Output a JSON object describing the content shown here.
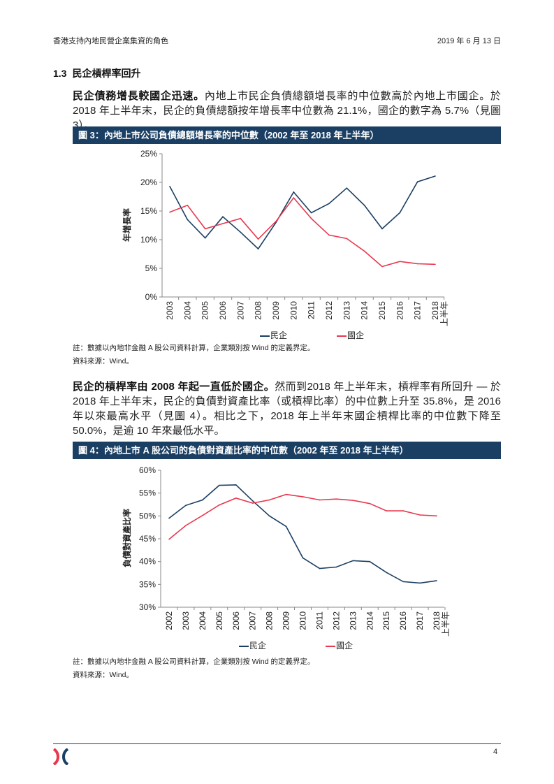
{
  "header": {
    "title": "香港支持內地民營企業集資的角色",
    "date": "2019 年 6 月 13 日"
  },
  "section": {
    "number": "1.3",
    "title": "民企槓桿率回升"
  },
  "paragraph1": {
    "lead": "民企債務增長較國企迅速。",
    "body": "內地上市民企負債總額增長率的中位數高於內地上市國企。於 2018 年上半年末，民企的負債總額按年增長率中位數為 21.1%，國企的數字為 5.7%（見圖 3）。"
  },
  "figure3": {
    "title": "圖 3：內地上市公司負債總額增長率的中位數（2002 年至 2018 年上半年）"
  },
  "figure3_notes": {
    "note": "註：數據以內地非金融 A 股公司資料計算，企業類別按 Wind 的定義界定。",
    "source": "資料來源：Wind。"
  },
  "paragraph2": {
    "lead": "民企的槓桿率由 2008 年起一直低於國企。",
    "body": "然而到2018 年上半年末，槓桿率有所回升 — 於 2018 年上半年末，民企的負債對資產比率（或槓桿比率）的中位數上升至 35.8%，是 2016 年以來最高水平（見圖 4）。相比之下，2018 年上半年末國企槓桿比率的中位數下降至 50.0%，是逾 10 年來最低水平。"
  },
  "figure4": {
    "title": "圖 4：內地上市 A 股公司的負債對資產比率的中位數（2002 年至 2018 年上半年）"
  },
  "figure4_notes": {
    "note": "註：數據以內地非金融 A 股公司資料計算，企業類別按 Wind 的定義界定。",
    "source": "資料來源：Wind。"
  },
  "footer": {
    "page": "4",
    "logo": "HKEX"
  },
  "colors": {
    "private": "#1b3f63",
    "state": "#e8384f",
    "banner": "#1b3f63"
  },
  "chart_data": [
    {
      "type": "line",
      "ylabel": "年增長率",
      "xlabel": "",
      "categories": [
        "2003",
        "2004",
        "2005",
        "2006",
        "2007",
        "2008",
        "2009",
        "2010",
        "2011",
        "2012",
        "2013",
        "2014",
        "2015",
        "2016",
        "2017",
        "2018"
      ],
      "last_category_suffix": "上半年",
      "ylim": [
        0,
        25
      ],
      "yticks": [
        "0%",
        "5%",
        "10%",
        "15%",
        "20%",
        "25%"
      ],
      "grid": false,
      "legend": "bottom",
      "series": [
        {
          "name": "民企",
          "color": "#1b3f63",
          "values": [
            19.3,
            13.5,
            10.3,
            14.0,
            11.3,
            8.4,
            13.0,
            18.3,
            14.7,
            16.3,
            19.0,
            16.0,
            11.9,
            14.7,
            20.1,
            21.1
          ]
        },
        {
          "name": "國企",
          "color": "#e8384f",
          "values": [
            14.8,
            16.0,
            11.9,
            12.8,
            13.7,
            10.1,
            13.2,
            17.3,
            13.7,
            10.8,
            10.2,
            8.0,
            5.3,
            6.2,
            5.8,
            5.7
          ]
        }
      ]
    },
    {
      "type": "line",
      "ylabel": "負債對資產比率",
      "xlabel": "",
      "categories": [
        "2002",
        "2003",
        "2004",
        "2005",
        "2006",
        "2007",
        "2008",
        "2009",
        "2010",
        "2011",
        "2012",
        "2013",
        "2014",
        "2015",
        "2016",
        "2017",
        "2018"
      ],
      "last_category_suffix": "上半年",
      "ylim": [
        30,
        60
      ],
      "yticks": [
        "30%",
        "35%",
        "40%",
        "45%",
        "50%",
        "55%",
        "60%"
      ],
      "grid": false,
      "legend": "bottom",
      "series": [
        {
          "name": "民企",
          "color": "#1b3f63",
          "values": [
            49.5,
            52.3,
            53.5,
            56.7,
            56.8,
            53.3,
            50.0,
            47.7,
            40.8,
            38.5,
            38.8,
            40.2,
            40.0,
            37.6,
            35.6,
            35.3,
            35.8
          ]
        },
        {
          "name": "國企",
          "color": "#e8384f",
          "values": [
            44.9,
            47.9,
            50.1,
            52.4,
            53.9,
            52.8,
            53.5,
            54.7,
            54.2,
            53.5,
            53.7,
            53.4,
            52.7,
            51.1,
            51.1,
            50.2,
            50.0
          ]
        }
      ]
    }
  ]
}
